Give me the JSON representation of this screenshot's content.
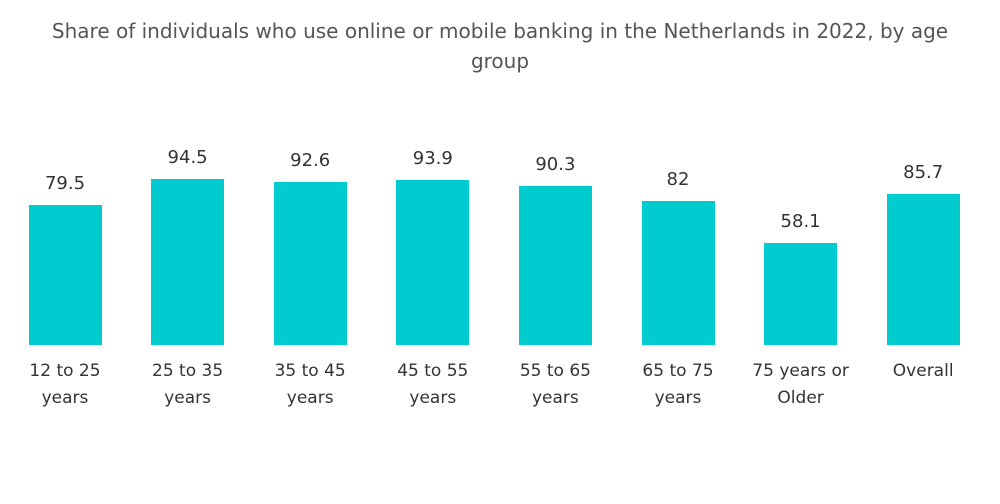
{
  "chart_data": {
    "type": "bar",
    "title": "Share of individuals who use online or mobile banking in the Netherlands in 2022, by age group",
    "categories": [
      "12 to 25 years",
      "25 to 35 years",
      "35 to 45 years",
      "45 to 55 years",
      "55 to 65 years",
      "65 to 75 years",
      "75 years or Older",
      "Overall"
    ],
    "values": [
      79.5,
      94.5,
      92.6,
      93.9,
      90.3,
      82,
      58.1,
      85.7
    ],
    "color": "#00cccf"
  }
}
